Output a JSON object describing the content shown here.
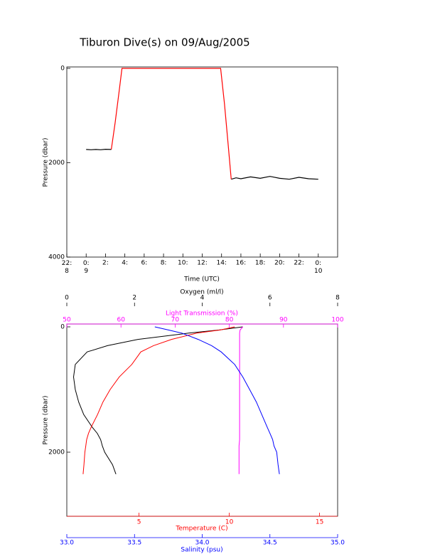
{
  "chart_data": [
    {
      "type": "line",
      "title": "Tiburon Dive(s) on 09/Aug/2005",
      "xlabel": "Time (UTC)",
      "ylabel": "Pressure (dbar)",
      "x": [
        0,
        0.5,
        1,
        1.5,
        2,
        2.6,
        3.0,
        3.4,
        3.7,
        5,
        8,
        11,
        13.9,
        14.3,
        14.7,
        15.0,
        15.5,
        16,
        17,
        18,
        19,
        20,
        21,
        22,
        23,
        24
      ],
      "xlim": [
        -2,
        26
      ],
      "xticks": [
        {
          "value": -2,
          "label": "22:\n8"
        },
        {
          "value": 0,
          "label": "0:\n9"
        },
        {
          "value": 2,
          "label": "2:"
        },
        {
          "value": 4,
          "label": "4:"
        },
        {
          "value": 6,
          "label": "6:"
        },
        {
          "value": 8,
          "label": "8:"
        },
        {
          "value": 10,
          "label": "10:"
        },
        {
          "value": 12,
          "label": "12:"
        },
        {
          "value": 14,
          "label": "14:"
        },
        {
          "value": 16,
          "label": "16:"
        },
        {
          "value": 18,
          "label": "18:"
        },
        {
          "value": 20,
          "label": "20:"
        },
        {
          "value": 22,
          "label": "22:"
        },
        {
          "value": 24,
          "label": "0:\n10"
        }
      ],
      "ylim": [
        0,
        4000
      ],
      "yticks": [
        0,
        2000,
        4000
      ],
      "y_inverted": true,
      "series": [
        {
          "color": "#000000",
          "values": [
            1720,
            1725,
            1720,
            1725,
            1715,
            1720,
            null,
            null,
            null,
            null,
            null,
            null,
            null,
            null,
            null,
            2350,
            2320,
            2340,
            2300,
            2330,
            2290,
            2330,
            2350,
            2310,
            2340,
            2350
          ]
        },
        {
          "color": "#ff0000",
          "values": [
            null,
            null,
            null,
            null,
            null,
            1720,
            1150,
            500,
            0,
            0,
            0,
            0,
            0,
            750,
            1650,
            2350,
            null,
            null,
            null,
            null,
            null,
            null,
            null,
            null,
            null,
            null
          ]
        }
      ]
    },
    {
      "type": "profile",
      "ylabel": "Pressure (dbar)",
      "y": [
        0,
        50,
        100,
        200,
        300,
        400,
        600,
        800,
        1000,
        1200,
        1400,
        1600,
        1700,
        1800,
        1900,
        2000,
        2200,
        2350
      ],
      "ylim": [
        0,
        3000
      ],
      "yticks": [
        0,
        2000
      ],
      "y_inverted": true,
      "axes": [
        {
          "label": "Oxygen (ml/l)",
          "color": "#000000",
          "xlim": [
            0,
            8
          ],
          "xticks": [
            0,
            2,
            4,
            6,
            8
          ],
          "values": [
            5.2,
            4.5,
            3.6,
            2.1,
            1.2,
            0.6,
            0.25,
            0.2,
            0.25,
            0.35,
            0.5,
            0.75,
            0.9,
            1.0,
            1.05,
            1.12,
            1.35,
            1.45
          ]
        },
        {
          "label": "Light Transmission (%)",
          "color": "#ff00ff",
          "xlim": [
            50,
            100
          ],
          "xticks": [
            50,
            60,
            70,
            80,
            90,
            100
          ],
          "values": [
            82.5,
            82.0,
            81.9,
            81.9,
            81.9,
            81.9,
            81.9,
            81.9,
            81.9,
            81.9,
            81.9,
            81.9,
            81.9,
            81.9,
            81.8,
            81.8,
            81.8,
            81.8
          ]
        },
        {
          "label": "Temperature (C)",
          "color": "#ff0000",
          "xlim": [
            1,
            16
          ],
          "xticks": [
            5,
            10,
            15
          ],
          "values": [
            10.3,
            9.5,
            8.2,
            6.8,
            5.8,
            5.1,
            4.6,
            3.9,
            3.4,
            3.0,
            2.7,
            2.35,
            2.2,
            2.1,
            2.05,
            2.0,
            1.95,
            1.9
          ]
        },
        {
          "label": "Salinity (psu)",
          "color": "#0000ff",
          "xlim": [
            33,
            35
          ],
          "xticks": [
            {
              "value": 33,
              "label": "33.0"
            },
            33.5,
            {
              "value": 34,
              "label": "34.0"
            },
            34.5,
            {
              "value": 35,
              "label": "35.0"
            }
          ],
          "values": [
            33.65,
            33.75,
            33.85,
            33.97,
            34.07,
            34.14,
            34.24,
            34.3,
            34.35,
            34.4,
            34.44,
            34.48,
            34.5,
            34.52,
            34.53,
            34.55,
            34.56,
            34.57
          ]
        }
      ]
    }
  ]
}
